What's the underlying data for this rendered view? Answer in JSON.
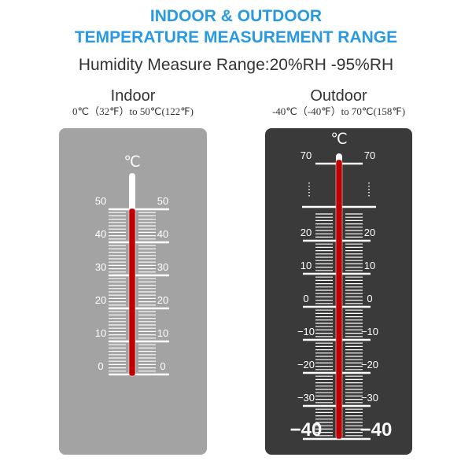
{
  "header": {
    "title_line1": "INDOOR & OUTDOOR",
    "title_line2": "TEMPERATURE MEASUREMENT RANGE",
    "subtitle": "Humidity Measure Range:20%RH -95%RH"
  },
  "panels": [
    {
      "label": "Indoor",
      "range": "0℃（32℉）to 50℃(122℉)",
      "unit": "℃",
      "scale_labels": [
        "50",
        "40",
        "30",
        "20",
        "10",
        "0"
      ]
    },
    {
      "label": "Outdoor",
      "range": "-40℃（-40℉）to 70℃(158℉)",
      "unit": "℃",
      "scale_labels": [
        "70",
        "20",
        "10",
        "0",
        "−10",
        "−20",
        "−30",
        "−40"
      ]
    }
  ]
}
